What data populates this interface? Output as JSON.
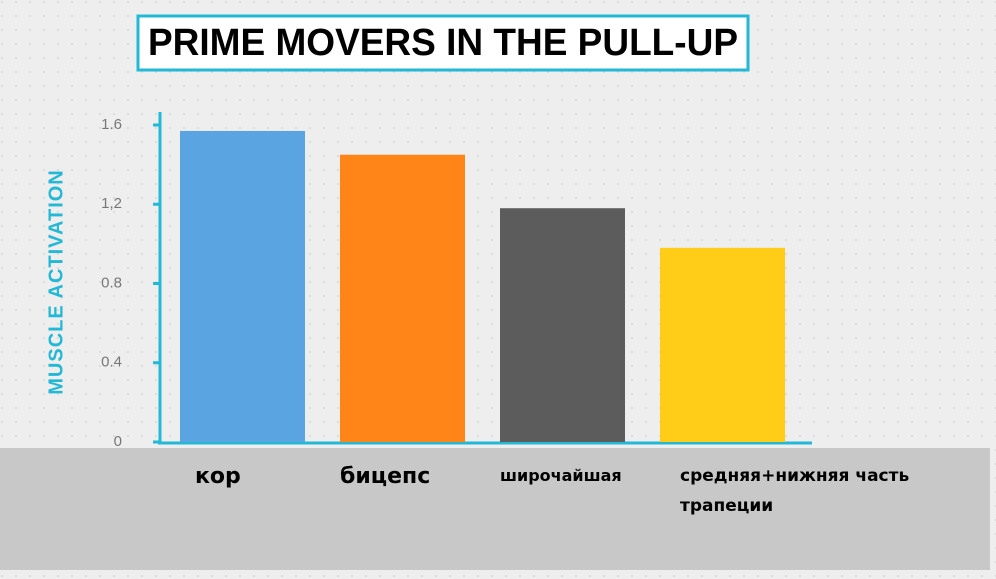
{
  "chart_data": {
    "type": "bar",
    "title": "PRIME MOVERS IN THE PULL-UP",
    "y_label": "MUSCLE ACTIVATION",
    "categories": [
      "кор",
      "бицепс",
      "широчайшая",
      "средняя+нижняя часть трапеции"
    ],
    "values": [
      1.57,
      1.45,
      1.18,
      0.98
    ],
    "colors": [
      "#5ba4e2",
      "#ff8519",
      "#5c5c5c",
      "#ffcc17"
    ],
    "ylim": [
      0,
      1.6
    ],
    "yticks": [
      0,
      0.4,
      0.8,
      {
        "value": 1.2,
        "label": "1,2"
      },
      1.6
    ]
  }
}
